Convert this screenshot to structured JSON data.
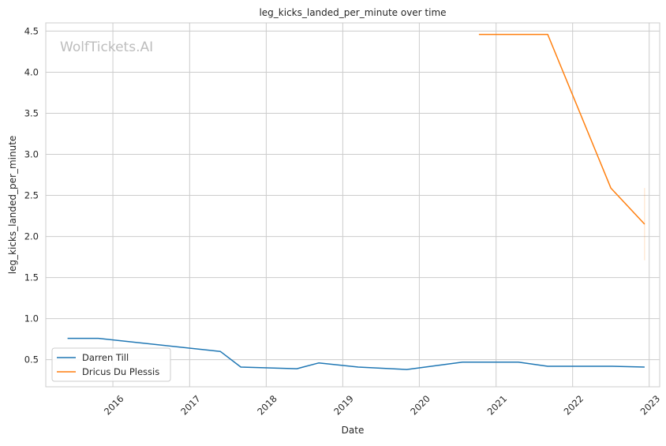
{
  "watermark": "WolfTickets.AI",
  "chart_data": {
    "type": "line",
    "title": "leg_kicks_landed_per_minute over time",
    "xlabel": "Date",
    "ylabel": "leg_kicks_landed_per_minute",
    "x_type": "date",
    "xlim": [
      "2015-02-15",
      "2023-02-20"
    ],
    "ylim": [
      0.17,
      4.6
    ],
    "x_ticks": [
      "2016-01-01",
      "2017-01-01",
      "2018-01-01",
      "2019-01-01",
      "2020-01-01",
      "2021-01-01",
      "2022-01-01",
      "2023-01-01"
    ],
    "x_tick_labels": [
      "2016",
      "2017",
      "2018",
      "2019",
      "2020",
      "2021",
      "2022",
      "2023"
    ],
    "y_ticks": [
      0.5,
      1.0,
      1.5,
      2.0,
      2.5,
      3.0,
      3.5,
      4.0,
      4.5
    ],
    "y_tick_labels": [
      "0.5",
      "1.0",
      "1.5",
      "2.0",
      "2.5",
      "3.0",
      "3.5",
      "4.0",
      "4.5"
    ],
    "grid": true,
    "legend_position": "bottom-left",
    "series": [
      {
        "name": "Darren Till",
        "color": "#1f77b4",
        "x": [
          "2015-05-30",
          "2015-10-24",
          "2017-05-28",
          "2017-09-02",
          "2018-05-27",
          "2018-09-08",
          "2019-03-16",
          "2019-11-02",
          "2020-07-25",
          "2021-04-17",
          "2021-09-04",
          "2022-07-09",
          "2022-12-10"
        ],
        "y": [
          0.76,
          0.76,
          0.6,
          0.41,
          0.39,
          0.46,
          0.41,
          0.38,
          0.47,
          0.47,
          0.42,
          0.42,
          0.41
        ]
      },
      {
        "name": "Dricus Du Plessis",
        "color": "#ff7f0e",
        "x": [
          "2020-10-11",
          "2021-07-10",
          "2021-09-04",
          "2022-07-02",
          "2022-12-10"
        ],
        "y": [
          4.46,
          4.46,
          4.46,
          2.59,
          2.15
        ],
        "error_bar": {
          "x": "2022-12-10",
          "low": 1.71,
          "high": 2.59
        }
      }
    ]
  }
}
